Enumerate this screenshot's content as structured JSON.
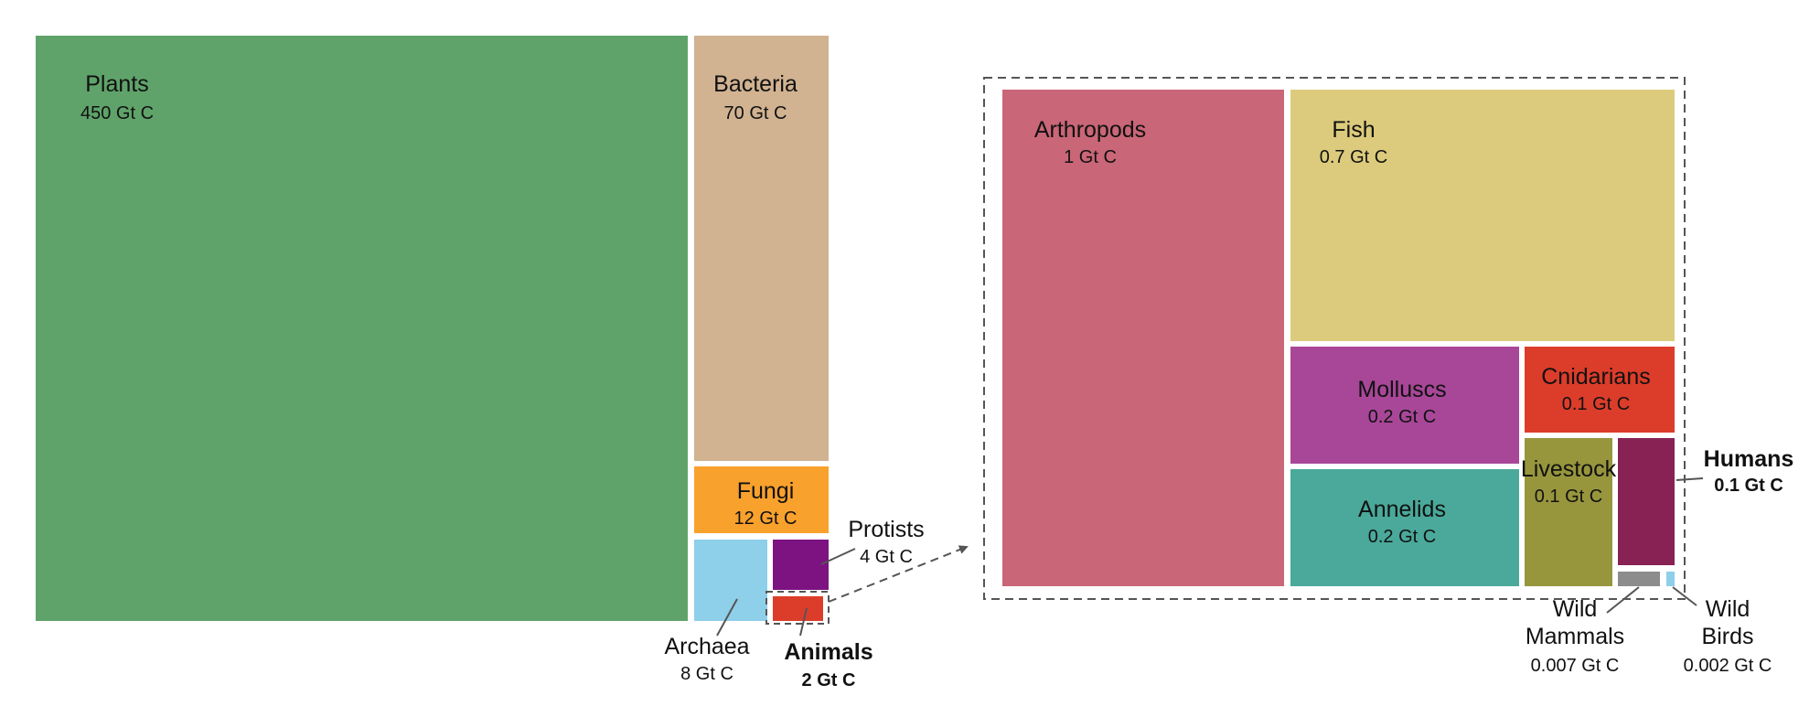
{
  "chart_data": {
    "type": "treemap",
    "unit": "Gt C",
    "overview": [
      {
        "name": "Plants",
        "value": 450,
        "value_label": "450 Gt C",
        "color": "#5fa36a"
      },
      {
        "name": "Bacteria",
        "value": 70,
        "value_label": "70 Gt C",
        "color": "#d1b291"
      },
      {
        "name": "Fungi",
        "value": 12,
        "value_label": "12 Gt C",
        "color": "#f9a12d"
      },
      {
        "name": "Archaea",
        "value": 8,
        "value_label": "8 Gt C",
        "color": "#8ecfea"
      },
      {
        "name": "Protists",
        "value": 4,
        "value_label": "4 Gt C",
        "color": "#7d1281"
      },
      {
        "name": "Animals",
        "value": 2,
        "value_label": "2 Gt C",
        "color": "#dc3d2a"
      }
    ],
    "animals_detail": [
      {
        "name": "Arthropods",
        "value": 1,
        "value_label": "1 Gt C",
        "color": "#c96677"
      },
      {
        "name": "Fish",
        "value": 0.7,
        "value_label": "0.7 Gt C",
        "color": "#dccb7c"
      },
      {
        "name": "Molluscs",
        "value": 0.2,
        "value_label": "0.2 Gt C",
        "color": "#a84798"
      },
      {
        "name": "Cnidarians",
        "value": 0.1,
        "value_label": "0.1 Gt C",
        "color": "#dc3d2a"
      },
      {
        "name": "Annelids",
        "value": 0.2,
        "value_label": "0.2 Gt C",
        "color": "#4aa99a"
      },
      {
        "name": "Livestock",
        "value": 0.1,
        "value_label": "0.1 Gt C",
        "color": "#98963d"
      },
      {
        "name": "Humans",
        "value": 0.1,
        "value_label": "0.1 Gt C",
        "color": "#882255"
      },
      {
        "name": "Wild Mammals",
        "value": 0.007,
        "value_label": "0.007 Gt C",
        "color": "#8c8c8c"
      },
      {
        "name": "Wild Birds",
        "value": 0.002,
        "value_label": "0.002 Gt C",
        "color": "#8ecfea"
      }
    ]
  }
}
